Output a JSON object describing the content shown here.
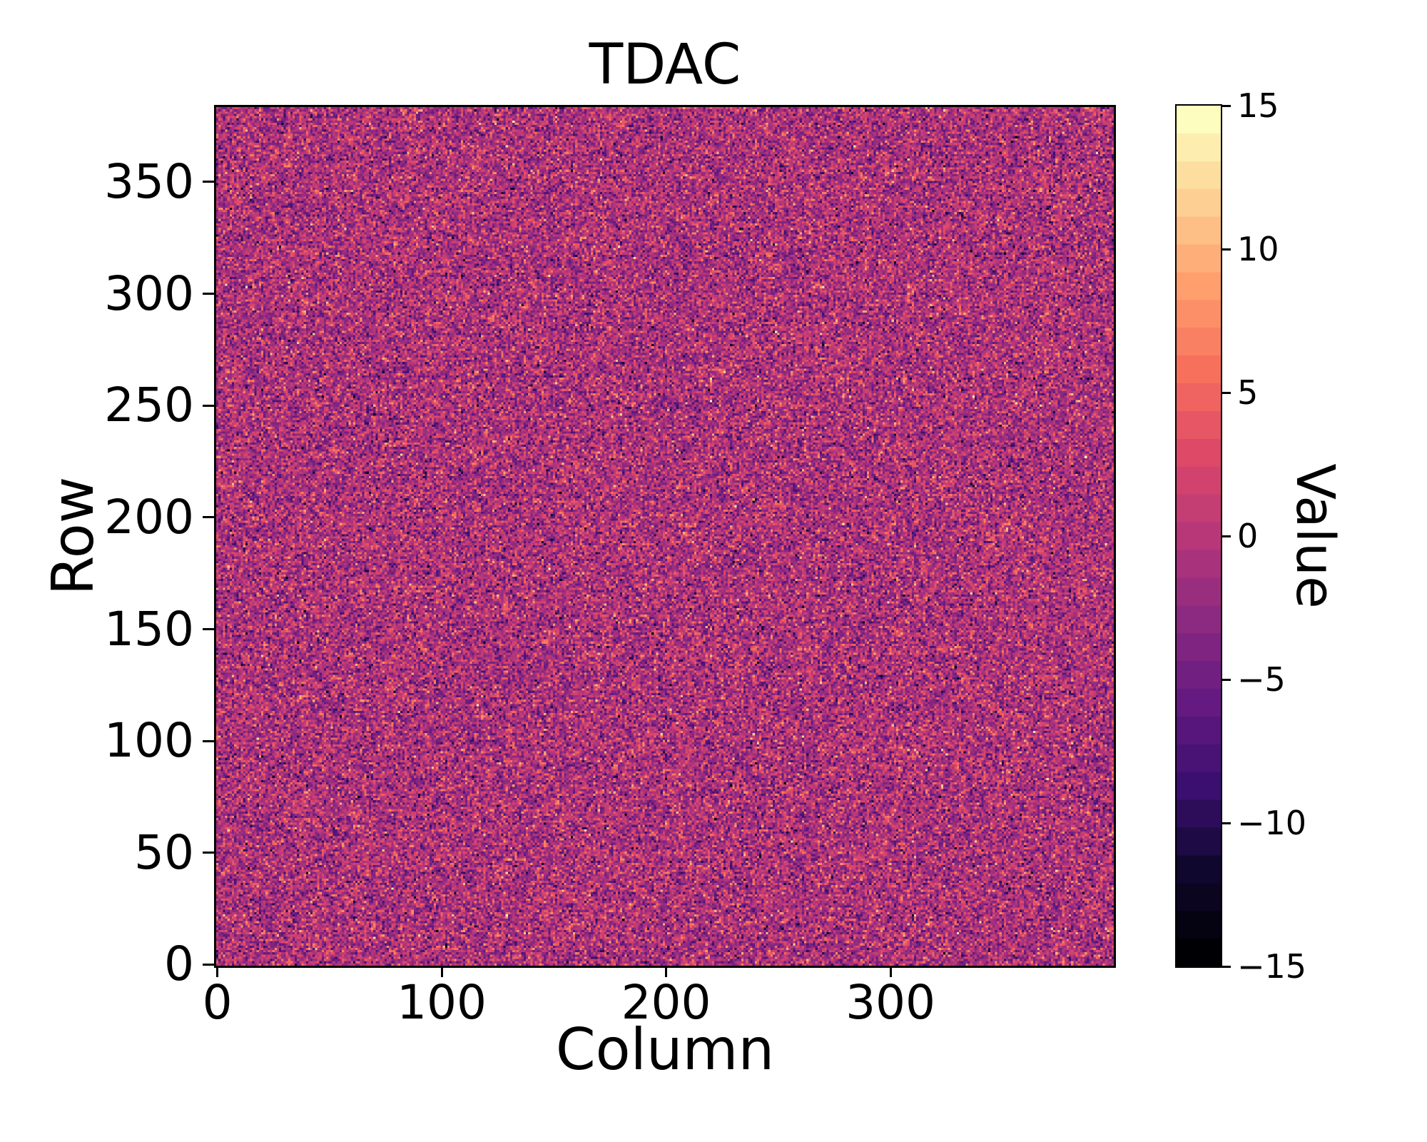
{
  "chart_data": {
    "type": "heatmap",
    "title": "TDAC",
    "xlabel": "Column",
    "ylabel": "Row",
    "colorbar_label": "Value",
    "shape": {
      "cols": 400,
      "rows": 384
    },
    "xlim": [
      -0.5,
      399.5
    ],
    "ylim": [
      -0.5,
      383.5
    ],
    "x_ticks": [
      0,
      100,
      200,
      300
    ],
    "y_ticks": [
      0,
      50,
      100,
      150,
      200,
      250,
      300,
      350
    ],
    "gridlines": false,
    "legend": "none",
    "colorbar": {
      "vmin": -15,
      "vmax": 15,
      "levels": 31,
      "ticks": [
        15,
        10,
        5,
        0,
        -5,
        -10,
        -15
      ],
      "tick_labels": [
        "15",
        "10",
        "5",
        "0",
        "−5",
        "−10",
        "−15"
      ],
      "position": "right"
    },
    "colormap": {
      "name": "magma",
      "stops": [
        {
          "t": 0.0,
          "c": "#000004"
        },
        {
          "t": 0.1,
          "c": "#10072e"
        },
        {
          "t": 0.2,
          "c": "#3b0f70"
        },
        {
          "t": 0.3,
          "c": "#641a80"
        },
        {
          "t": 0.4,
          "c": "#8c2981"
        },
        {
          "t": 0.5,
          "c": "#b73779"
        },
        {
          "t": 0.6,
          "c": "#de4968"
        },
        {
          "t": 0.7,
          "c": "#f7705c"
        },
        {
          "t": 0.8,
          "c": "#fe9f6d"
        },
        {
          "t": 0.9,
          "c": "#fecf92"
        },
        {
          "t": 1.0,
          "c": "#fcfdbf"
        }
      ]
    },
    "data_representation": "uniform integer-quantized gaussian noise over full 400x384 grid",
    "distribution": {
      "type": "gaussian",
      "mean": -0.8,
      "sigma": 3.8,
      "clip": [
        -15,
        15
      ],
      "quantized_to_integers": true,
      "seed": 1337
    },
    "text_color": "#000000",
    "background_color": "#ffffff",
    "axis_color": "#000000"
  }
}
